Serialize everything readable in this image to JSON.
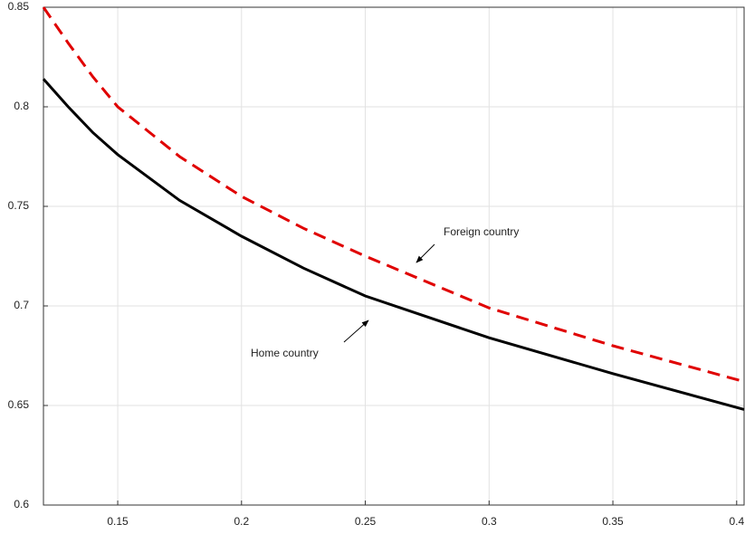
{
  "chart_data": {
    "type": "line",
    "x": [
      0.12,
      0.13,
      0.14,
      0.15,
      0.175,
      0.2,
      0.225,
      0.25,
      0.3,
      0.35,
      0.403
    ],
    "series": [
      {
        "name": "Home country",
        "color": "#000000",
        "dash": "solid",
        "values": [
          0.814,
          0.8,
          0.787,
          0.776,
          0.753,
          0.735,
          0.719,
          0.705,
          0.684,
          0.666,
          0.648
        ]
      },
      {
        "name": "Foreign country",
        "color": "#e00000",
        "dash": "dashed",
        "values": [
          0.85,
          0.832,
          0.815,
          0.8,
          0.775,
          0.755,
          0.739,
          0.725,
          0.699,
          0.68,
          0.662
        ]
      }
    ],
    "xlim": [
      0.12,
      0.403
    ],
    "ylim": [
      0.6,
      0.85
    ],
    "xticks": [
      0.15,
      0.2,
      0.25,
      0.3,
      0.35,
      0.4
    ],
    "yticks": [
      0.6,
      0.65,
      0.7,
      0.75,
      0.8,
      0.85
    ],
    "grid": true
  }
}
